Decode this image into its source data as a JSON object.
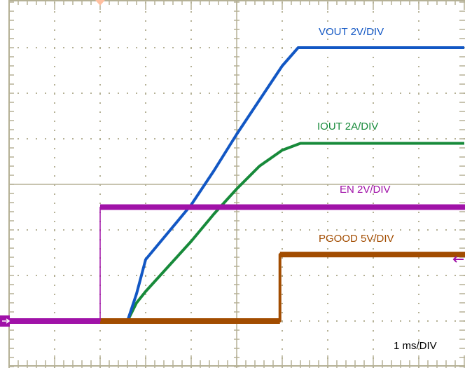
{
  "chart_data": {
    "type": "line",
    "xlabel": "",
    "ylabel": "",
    "timebase_label": "1 ms/DIV",
    "x_unit": "ms",
    "xlim": [
      0,
      10
    ],
    "y_divisions": 8,
    "grid": true,
    "series": [
      {
        "name": "VOUT 2V/DIV",
        "color": "#1257c4",
        "volts_per_div": 2,
        "x": [
          0,
          2.6,
          2.8,
          3.0,
          3.5,
          4.0,
          4.5,
          5.0,
          5.5,
          6.0,
          6.35,
          10
        ],
        "y": [
          0,
          0,
          1.2,
          2.7,
          3.9,
          5.1,
          6.6,
          8.2,
          9.7,
          11.2,
          12,
          12
        ]
      },
      {
        "name": "IOUT 2A/DIV",
        "color": "#178a3a",
        "volts_per_div": 2,
        "x": [
          0,
          2.6,
          2.8,
          3.0,
          3.5,
          4.0,
          4.5,
          5.0,
          5.5,
          6.0,
          6.4,
          10
        ],
        "y": [
          0,
          0,
          0.8,
          1.3,
          2.4,
          3.5,
          4.7,
          5.8,
          6.8,
          7.5,
          7.8,
          7.8
        ]
      },
      {
        "name": "EN 2V/DIV",
        "color": "#a012a8",
        "volts_per_div": 2,
        "x": [
          0,
          2.0,
          2.0,
          10
        ],
        "y": [
          0,
          0,
          5,
          5
        ]
      },
      {
        "name": "PGOOD 5V/DIV",
        "color": "#a24c00",
        "volts_per_div": 5,
        "x": [
          0,
          5.95,
          5.95,
          10
        ],
        "y": [
          0,
          0,
          7.3,
          7.3
        ]
      }
    ],
    "grid_color": "#b5b196",
    "trigger_marker_color": "#ffc0a0",
    "ground_marker_color": "#a012a8"
  }
}
